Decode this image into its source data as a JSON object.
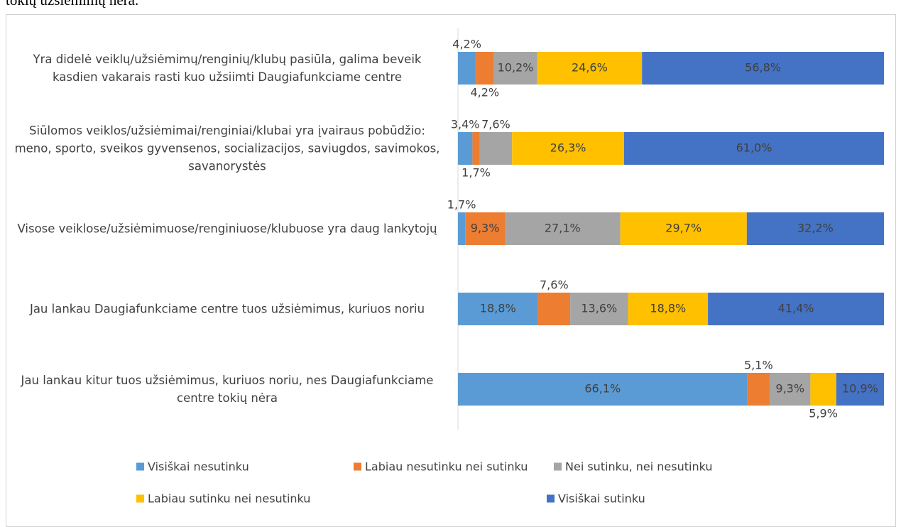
{
  "document_text": "tokių užsiėmimų nėra.",
  "chart_data": {
    "type": "stacked_bar_100",
    "categories": [
      "Yra didelė veiklų/užsiėmimų/renginių/klubų pasiūla, galima beveik kasdien vakarais rasti kuo užsiimti Daugiafunkciame centre",
      "Siūlomos veiklos/užsiėmimai/renginiai/klubai yra įvairaus pobūdžio: meno, sporto, sveikos gyvensenos, socializacijos, saviugdos, savimokos, savanorystės",
      "Visose veiklose/užsiėmimuose/renginiuose/klubuose yra daug lankytojų",
      "Jau lankau Daugiafunkciame centre tuos užsiėmimus, kuriuos noriu",
      "Jau lankau kitur tuos užsiėmimus, kuriuos noriu, nes Daugiafunkciame centre tokių nėra"
    ],
    "series": [
      {
        "name": "Visiškai nesutinku",
        "color": "#5b9bd5",
        "values": [
          4.2,
          3.4,
          1.7,
          18.8,
          66.1
        ],
        "value_labels": [
          "4,2%",
          "3,4%",
          "1,7%",
          "18,8%",
          "66,1%"
        ]
      },
      {
        "name": "Labiau nesutinku nei sutinku",
        "color": "#ed7d31",
        "values": [
          4.2,
          1.7,
          9.3,
          7.6,
          5.1
        ],
        "value_labels": [
          "4,2%",
          "1,7%",
          "9,3%",
          "7,6%",
          "5,1%"
        ]
      },
      {
        "name": "Nei sutinku, nei nesutinku",
        "color": "#a5a5a5",
        "values": [
          10.2,
          7.6,
          27.1,
          13.6,
          9.3
        ],
        "value_labels": [
          "10,2%",
          "7,6%",
          "27,1%",
          "13,6%",
          "9,3%"
        ]
      },
      {
        "name": "Labiau sutinku nei nesutinku",
        "color": "#ffc000",
        "values": [
          24.6,
          26.3,
          29.7,
          18.8,
          5.9
        ],
        "value_labels": [
          "24,6%",
          "26,3%",
          "29,7%",
          "18,8%",
          "5,9%"
        ]
      },
      {
        "name": "Visiškai sutinku",
        "color": "#4472c4",
        "values": [
          56.8,
          61.0,
          32.2,
          41.4,
          10.9
        ],
        "value_labels": [
          "56,8%",
          "61,0%",
          "32,2%",
          "41,4%",
          "10,9%"
        ]
      }
    ],
    "legend": "bottom"
  }
}
